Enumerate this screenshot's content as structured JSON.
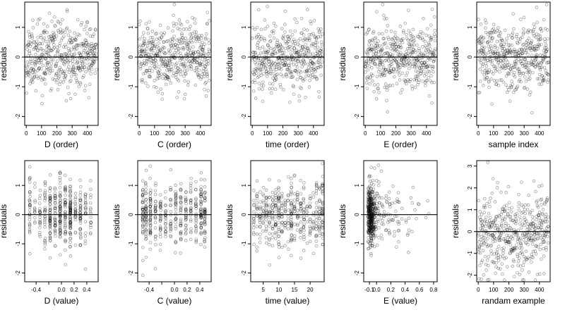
{
  "chart_data": [
    {
      "type": "scatter",
      "mode": "order",
      "xlabel": "D (order)",
      "ylabel": "residuals",
      "xlim": [
        -10,
        470
      ],
      "ylim": [
        -2.3,
        1.85
      ],
      "xticks": [
        0,
        100,
        200,
        300,
        400
      ],
      "yticks": [
        -2,
        -1,
        0,
        1
      ],
      "n": 460,
      "seed": 11,
      "spread": 0.55,
      "zero_line": true
    },
    {
      "type": "scatter",
      "mode": "order",
      "xlabel": "C (order)",
      "ylabel": "residuals",
      "xlim": [
        -10,
        470
      ],
      "ylim": [
        -2.3,
        1.85
      ],
      "xticks": [
        0,
        100,
        200,
        300,
        400
      ],
      "yticks": [
        -2,
        -1,
        0,
        1
      ],
      "n": 460,
      "seed": 23,
      "spread": 0.55,
      "zero_line": true
    },
    {
      "type": "scatter",
      "mode": "order",
      "xlabel": "time (order)",
      "ylabel": "residuals",
      "xlim": [
        -10,
        470
      ],
      "ylim": [
        -2.3,
        1.85
      ],
      "xticks": [
        0,
        100,
        200,
        300,
        400
      ],
      "yticks": [
        -2,
        -1,
        0,
        1
      ],
      "n": 460,
      "seed": 37,
      "spread": 0.55,
      "zero_line": true
    },
    {
      "type": "scatter",
      "mode": "order",
      "xlabel": "E (order)",
      "ylabel": "residuals",
      "xlim": [
        -10,
        470
      ],
      "ylim": [
        -2.3,
        1.85
      ],
      "xticks": [
        0,
        100,
        200,
        300,
        400
      ],
      "yticks": [
        -2,
        -1,
        0,
        1
      ],
      "n": 460,
      "seed": 41,
      "spread": 0.55,
      "zero_line": true
    },
    {
      "type": "scatter",
      "mode": "order",
      "xlabel": "sample index",
      "ylabel": "residuals",
      "xlim": [
        -10,
        470
      ],
      "ylim": [
        -2.3,
        1.85
      ],
      "xticks": [
        0,
        100,
        200,
        300,
        400
      ],
      "yticks": [
        -2,
        -1,
        0,
        1
      ],
      "n": 460,
      "seed": 53,
      "spread": 0.55,
      "zero_line": true
    },
    {
      "type": "scatter",
      "mode": "levels",
      "xlabel": "D (value)",
      "ylabel": "residuals",
      "xlim": [
        -0.58,
        0.58
      ],
      "ylim": [
        -2.3,
        1.85
      ],
      "xticks": [
        -0.4,
        -0.2,
        0.0,
        0.2,
        0.4
      ],
      "xticklabels": [
        "-0.4",
        "",
        "0.0",
        "0.2",
        "0.4"
      ],
      "yticks": [
        -2,
        -1,
        0,
        1
      ],
      "levels": [
        -0.5,
        -0.42,
        -0.34,
        -0.26,
        -0.18,
        -0.1,
        -0.02,
        0.06,
        0.14,
        0.22,
        0.3,
        0.38,
        0.46
      ],
      "weights": [
        2,
        1,
        2,
        2,
        3,
        3,
        4,
        3,
        4,
        2,
        2,
        1,
        1
      ],
      "n": 460,
      "seed": 61,
      "spread": 0.55,
      "zero_line": true
    },
    {
      "type": "scatter",
      "mode": "levels",
      "xlabel": "C (value)",
      "ylabel": "residuals",
      "xlim": [
        -0.58,
        0.58
      ],
      "ylim": [
        -2.3,
        1.85
      ],
      "xticks": [
        -0.4,
        -0.2,
        0.0,
        0.2,
        0.4
      ],
      "xticklabels": [
        "-0.4",
        "",
        "0.0",
        "0.2",
        "0.4"
      ],
      "yticks": [
        -2,
        -1,
        0,
        1
      ],
      "levels": [
        -0.5,
        -0.45,
        -0.38,
        -0.3,
        -0.22,
        -0.14,
        -0.06,
        0.02,
        0.1,
        0.18,
        0.26,
        0.34,
        0.42,
        0.48
      ],
      "weights": [
        4,
        3,
        3,
        2,
        2,
        2,
        2,
        2,
        2,
        2,
        2,
        2,
        3,
        4
      ],
      "n": 460,
      "seed": 73,
      "spread": 0.55,
      "zero_line": true
    },
    {
      "type": "scatter",
      "mode": "levels",
      "xlabel": "time (value)",
      "ylabel": "residuals",
      "xlim": [
        1,
        24.5
      ],
      "ylim": [
        -2.3,
        1.85
      ],
      "xticks": [
        5,
        10,
        15,
        20
      ],
      "yticks": [
        -2,
        -1,
        0,
        1
      ],
      "levels": [
        2,
        3,
        4,
        5,
        6,
        7,
        8,
        9,
        10,
        11,
        12,
        13,
        14,
        15,
        16,
        17,
        18,
        19,
        20,
        21,
        22,
        23,
        24
      ],
      "weights": [
        1,
        1,
        1,
        1,
        1,
        1,
        1,
        1,
        2,
        1,
        1,
        1,
        2,
        1,
        1,
        1,
        1,
        1,
        1,
        1,
        1,
        1,
        2
      ],
      "n": 460,
      "seed": 89,
      "spread": 0.55,
      "zero_line": true
    },
    {
      "type": "scatter",
      "mode": "skew",
      "xlabel": "E (value)",
      "ylabel": "residuals",
      "xlim": [
        -0.18,
        0.85
      ],
      "ylim": [
        -2.3,
        1.85
      ],
      "xticks": [
        -0.1,
        0.0,
        0.2,
        0.4,
        0.6,
        0.8
      ],
      "xticklabels": [
        "-0.1",
        "0.0",
        "0.2",
        "0.4",
        "0.6",
        "0.8"
      ],
      "yticks": [
        -2,
        -1,
        0,
        1
      ],
      "n": 460,
      "seed": 97,
      "spread": 0.55,
      "zero_line": true
    },
    {
      "type": "scatter",
      "mode": "order",
      "xlabel": "randam example",
      "ylabel": "residuals",
      "xlim": [
        -10,
        470
      ],
      "ylim": [
        -2.3,
        3.25
      ],
      "xticks": [
        0,
        100,
        200,
        300,
        400
      ],
      "yticks": [
        -2,
        -1,
        0,
        1,
        2,
        3
      ],
      "n": 460,
      "seed": 107,
      "spread": 0.95,
      "zero_line": true
    }
  ]
}
